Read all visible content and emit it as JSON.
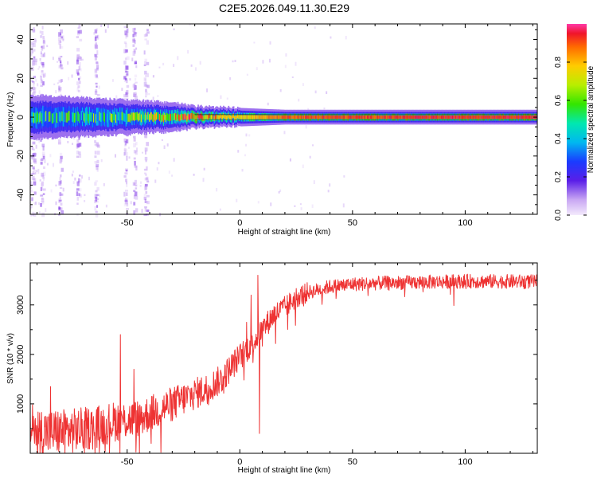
{
  "title": "C2E5.2026.049.11.30.E29",
  "chart_data": [
    {
      "type": "heatmap",
      "xlabel": "Height of straight line (km)",
      "ylabel": "Frequency (Hz)",
      "xlim": [
        -93,
        132
      ],
      "ylim": [
        -50,
        48
      ],
      "xticks": [
        -50,
        0,
        50,
        100
      ],
      "xtick_labels": [
        "-50",
        "0",
        "50",
        "100"
      ],
      "yticks": [
        -40,
        -20,
        0,
        20,
        40
      ],
      "ytick_labels": [
        "-40",
        "-20",
        "0",
        "20",
        "40"
      ],
      "colorbar": {
        "label": "Normalized spectral amplitude",
        "range": [
          0,
          1
        ],
        "ticks": [
          0.0,
          0.2,
          0.4,
          0.6,
          0.8
        ],
        "tick_labels": [
          "0.0",
          "0.2",
          "0.4",
          "0.6",
          "0.8"
        ]
      },
      "ridge_frequency_hz": 0,
      "ridge_profile": [
        {
          "x": -93,
          "amp": 0.45,
          "width_hz": 6
        },
        {
          "x": -60,
          "amp": 0.5,
          "width_hz": 5
        },
        {
          "x": -30,
          "amp": 0.7,
          "width_hz": 4
        },
        {
          "x": -20,
          "amp": 0.85,
          "width_hz": 3
        },
        {
          "x": 0,
          "amp": 0.75,
          "width_hz": 2.5
        },
        {
          "x": 20,
          "amp": 0.9,
          "width_hz": 2
        },
        {
          "x": 132,
          "amp": 0.95,
          "width_hz": 2
        }
      ],
      "noise_columns_km": [
        -92,
        -88,
        -80,
        -72,
        -64,
        -51,
        -47,
        -42
      ]
    },
    {
      "type": "line",
      "xlabel": "Height of straight line (km)",
      "ylabel": "SNR (10 * v/v)",
      "xlim": [
        -93,
        132
      ],
      "ylim": [
        0,
        3850
      ],
      "xticks": [
        -50,
        0,
        50,
        100
      ],
      "xtick_labels": [
        "-50",
        "0",
        "50",
        "100"
      ],
      "yticks": [
        1000,
        2000,
        3000
      ],
      "ytick_labels": [
        "1000",
        "2000",
        "3000"
      ],
      "color": "#ee3333",
      "series": [
        {
          "name": "SNR",
          "x": [
            -93,
            -85,
            -75,
            -65,
            -55,
            -45,
            -35,
            -25,
            -15,
            -8,
            -3,
            2,
            6,
            10,
            15,
            20,
            25,
            30,
            40,
            50,
            60,
            80,
            100,
            132
          ],
          "y": [
            500,
            420,
            450,
            520,
            650,
            700,
            900,
            1100,
            1300,
            1500,
            1800,
            2050,
            2250,
            2500,
            2800,
            2950,
            3150,
            3250,
            3370,
            3420,
            3440,
            3460,
            3480,
            3470
          ]
        }
      ],
      "spikes": [
        {
          "x": -92,
          "y": 980
        },
        {
          "x": -84,
          "y": 1350
        },
        {
          "x": -53,
          "y": 2400
        },
        {
          "x": -47,
          "y": 1700
        },
        {
          "x": 8,
          "y": 3600
        },
        {
          "x": 8.7,
          "y": 400
        },
        {
          "x": 5,
          "y": 3200
        },
        {
          "x": 3,
          "y": 2650
        }
      ],
      "noise_amplitude": 130
    }
  ]
}
